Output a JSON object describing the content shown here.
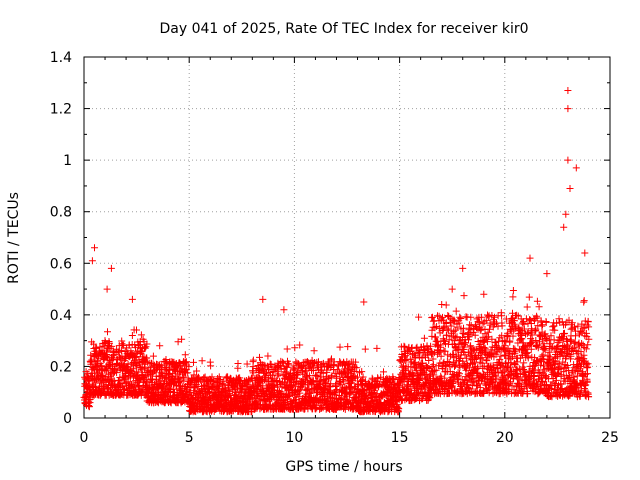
{
  "colors": {
    "series": "#ff0000",
    "axis": "#000000",
    "grid": "#a0a0a0",
    "background": "#ffffff"
  },
  "chart_data": {
    "type": "scatter",
    "title": "Day 041 of 2025, Rate Of TEC Index for receiver kir0",
    "xlabel": "GPS time / hours",
    "ylabel": "ROTI / TECUs",
    "xlim": [
      0,
      25
    ],
    "ylim": [
      0,
      1.4
    ],
    "xticks": [
      0,
      5,
      10,
      15,
      20,
      25
    ],
    "xtick_labels": [
      "0",
      "5",
      "10",
      "15",
      "20",
      "25"
    ],
    "yticks": [
      0,
      0.2,
      0.4,
      0.6,
      0.8,
      1.0,
      1.2,
      1.4
    ],
    "ytick_labels": [
      "0",
      "0.2",
      "0.4",
      "0.6",
      "0.8",
      "1",
      "1.2",
      "1.4"
    ],
    "grid": true,
    "marker": "plus",
    "series": [
      {
        "name": "ROTI",
        "x": [
          0.0,
          0.1,
          0.2,
          0.3,
          0.5,
          0.6,
          0.8,
          1.0,
          1.2,
          1.4,
          1.6,
          1.8,
          2.0,
          2.3,
          2.5,
          2.8,
          3.0,
          3.3,
          3.6,
          4.0,
          4.3,
          4.6,
          5.0,
          5.3,
          5.7,
          6.0,
          6.4,
          6.8,
          7.2,
          7.6,
          8.0,
          8.4,
          8.8,
          9.2,
          9.6,
          10.0,
          10.4,
          10.8,
          11.2,
          11.6,
          12.0,
          12.4,
          12.8,
          13.2,
          13.6,
          14.0,
          14.4,
          14.8,
          15.2,
          15.6,
          16.0,
          16.4,
          16.8,
          17.2,
          17.6,
          18.0,
          18.4,
          18.8,
          19.2,
          19.6,
          20.0,
          20.4,
          20.8,
          21.2,
          21.6,
          22.0,
          22.4,
          22.8,
          23.0,
          23.3,
          23.6,
          23.9,
          0.5,
          0.4,
          1.3,
          1.1,
          2.3,
          8.5,
          9.5,
          13.3,
          17.0,
          17.5,
          18.0,
          19.0,
          21.2,
          22.0,
          22.8,
          22.9,
          23.0,
          23.0,
          23.0,
          23.1,
          23.4,
          23.8
        ],
        "y": [
          0.08,
          0.18,
          0.12,
          0.22,
          0.15,
          0.27,
          0.2,
          0.3,
          0.14,
          0.26,
          0.1,
          0.24,
          0.2,
          0.32,
          0.16,
          0.22,
          0.12,
          0.24,
          0.28,
          0.15,
          0.1,
          0.18,
          0.12,
          0.08,
          0.14,
          0.05,
          0.1,
          0.06,
          0.09,
          0.04,
          0.08,
          0.15,
          0.07,
          0.12,
          0.2,
          0.1,
          0.15,
          0.08,
          0.14,
          0.1,
          0.06,
          0.12,
          0.08,
          0.18,
          0.1,
          0.05,
          0.12,
          0.07,
          0.1,
          0.16,
          0.2,
          0.12,
          0.28,
          0.18,
          0.3,
          0.22,
          0.14,
          0.35,
          0.2,
          0.1,
          0.28,
          0.18,
          0.32,
          0.2,
          0.15,
          0.3,
          0.22,
          0.18,
          0.25,
          0.12,
          0.2,
          0.15,
          0.66,
          0.61,
          0.58,
          0.5,
          0.46,
          0.46,
          0.42,
          0.45,
          0.44,
          0.5,
          0.58,
          0.48,
          0.62,
          0.56,
          0.74,
          0.79,
          1.0,
          1.2,
          1.27,
          0.89,
          0.97,
          0.64
        ],
        "point_count_approx": 4000,
        "pattern": "dense per-epoch ROTI; envelope ~0.1-0.3 (0-5 h), ~0.05-0.25 (5-15 h), ~0.05-0.5 (15-24 h) with spikes to 1.27 near 23 h"
      }
    ]
  }
}
